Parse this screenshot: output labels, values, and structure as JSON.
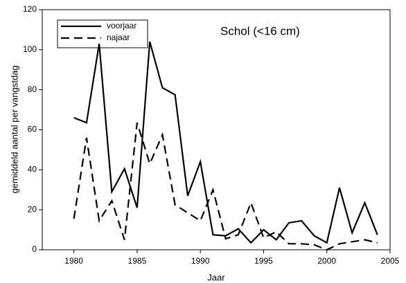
{
  "chart_data": {
    "type": "line",
    "title": "Schol (<16 cm)",
    "x_label": "Jaar",
    "y_label": "gemiddeld aantal per vangstdag",
    "x": [
      1980,
      1981,
      1982,
      1983,
      1984,
      1985,
      1986,
      1987,
      1988,
      1989,
      1990,
      1991,
      1992,
      1993,
      1994,
      1995,
      1996,
      1997,
      1998,
      1999,
      2000,
      2001,
      2002,
      2003,
      2004
    ],
    "series": [
      {
        "name": "voorjaar",
        "color": "#000000",
        "style": "solid",
        "values": [
          66,
          63.5,
          103,
          29,
          40.5,
          21,
          104,
          81,
          77.5,
          27,
          44,
          7.5,
          7,
          10.5,
          3.5,
          10,
          5,
          13.5,
          14.5,
          7,
          3.5,
          31,
          8.5,
          23.5,
          7.5
        ]
      },
      {
        "name": "najaar",
        "color": "#000000",
        "style": "dashed",
        "values": [
          15.5,
          56,
          14.5,
          24.5,
          5,
          63.5,
          43,
          57.5,
          22.5,
          18.5,
          14.5,
          30,
          5.5,
          7.5,
          23.5,
          6,
          9,
          3,
          3,
          2.5,
          0,
          3,
          4,
          5,
          3.5
        ]
      }
    ],
    "xlim": [
      1977.5,
      2005
    ],
    "xticks": [
      1980,
      1985,
      1990,
      1995,
      2000,
      2005
    ],
    "ylim": [
      0,
      120
    ],
    "yticks": [
      0,
      20,
      40,
      60,
      80,
      100,
      120
    ],
    "grid": false,
    "legend": "upper left"
  }
}
